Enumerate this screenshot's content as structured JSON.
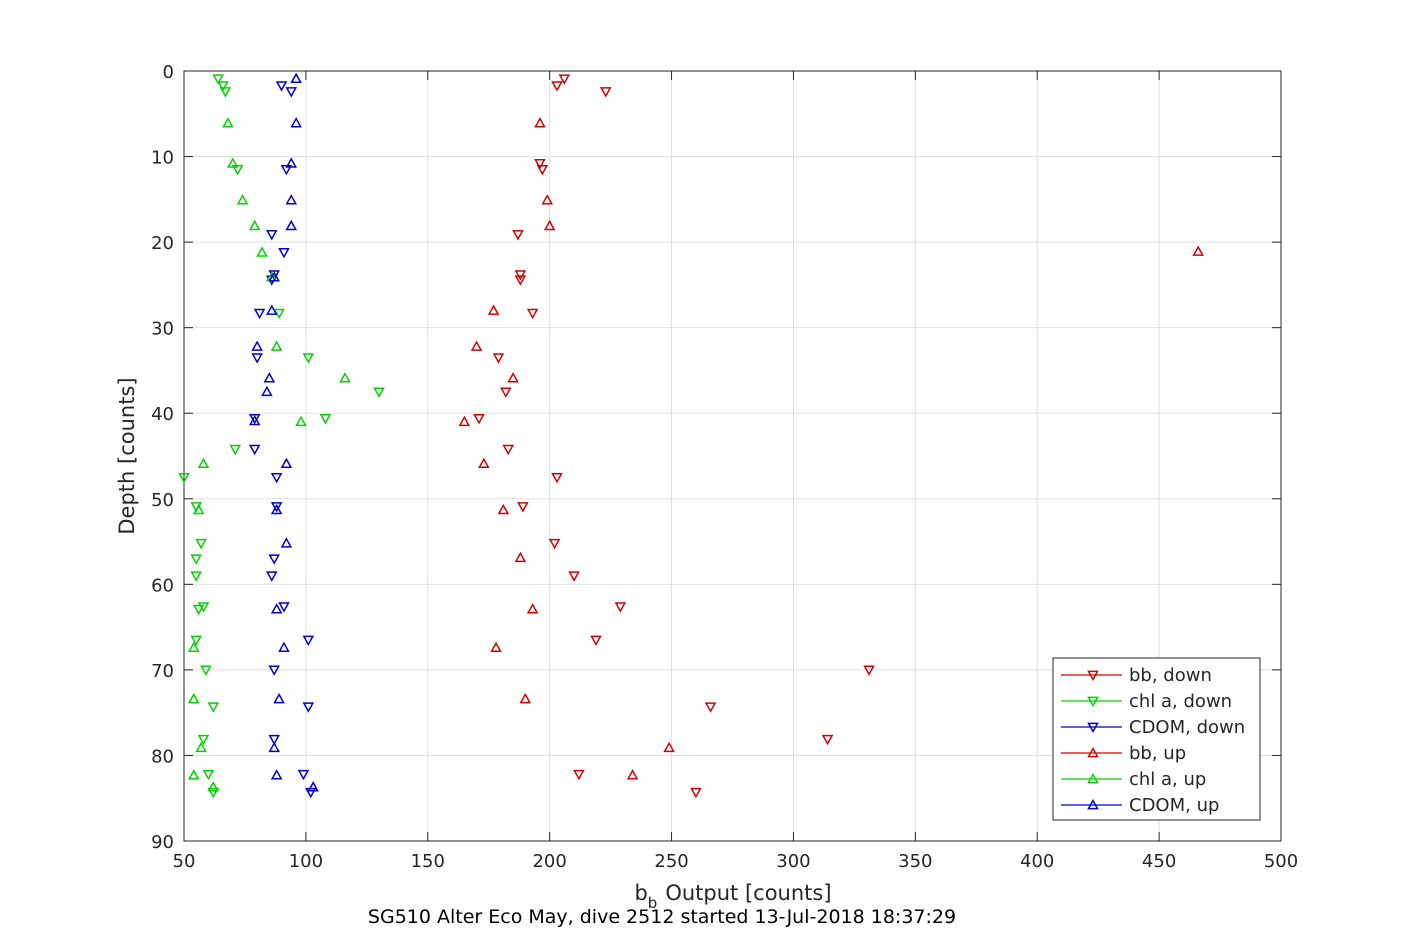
{
  "chart_data": {
    "type": "scatter",
    "title": "SG510 Alter Eco May, dive 2512 started 13-Jul-2018 18:37:29",
    "xlabel": "Output [counts]",
    "xlabel_symbol": "b",
    "xlabel_subscript": "b",
    "ylabel": "Depth [counts]",
    "xlim": [
      50,
      500
    ],
    "ylim": [
      0,
      90
    ],
    "y_reversed": true,
    "grid": true,
    "x_ticks": [
      50,
      100,
      150,
      200,
      250,
      300,
      350,
      400,
      450,
      500
    ],
    "y_ticks": [
      0,
      10,
      20,
      30,
      40,
      50,
      60,
      70,
      80,
      90
    ],
    "legend_position": "bottom-right",
    "series": [
      {
        "name": "bb, down",
        "color": "#d40000",
        "marker": "triangle-down",
        "points": [
          [
            206,
            0.9
          ],
          [
            203,
            1.7
          ],
          [
            223,
            2.4
          ],
          [
            196,
            10.8
          ],
          [
            197,
            11.5
          ],
          [
            187,
            19.1
          ],
          [
            188,
            23.8
          ],
          [
            188,
            24.4
          ],
          [
            193,
            28.3
          ],
          [
            179,
            33.5
          ],
          [
            182,
            37.5
          ],
          [
            171,
            40.6
          ],
          [
            183,
            44.2
          ],
          [
            203,
            47.5
          ],
          [
            189,
            50.9
          ],
          [
            202,
            55.2
          ],
          [
            210,
            59
          ],
          [
            229,
            62.6
          ],
          [
            219,
            66.5
          ],
          [
            331,
            70
          ],
          [
            266,
            74.3
          ],
          [
            314,
            78.1
          ],
          [
            212,
            82.2
          ],
          [
            260,
            84.3
          ]
        ]
      },
      {
        "name": "chl a, down",
        "color": "#00d400",
        "marker": "triangle-down",
        "points": [
          [
            64,
            0.9
          ],
          [
            66,
            1.7
          ],
          [
            67,
            2.4
          ],
          [
            72,
            11.5
          ],
          [
            89,
            28.3
          ],
          [
            101,
            33.5
          ],
          [
            130,
            37.5
          ],
          [
            108,
            40.6
          ],
          [
            71,
            44.2
          ],
          [
            50,
            47.5
          ],
          [
            55,
            50.9
          ],
          [
            57,
            55.2
          ],
          [
            55,
            57
          ],
          [
            55,
            59
          ],
          [
            58,
            62.6
          ],
          [
            56,
            62.9
          ],
          [
            55,
            66.5
          ],
          [
            59,
            70
          ],
          [
            62,
            74.3
          ],
          [
            58,
            78.1
          ],
          [
            60,
            82.2
          ],
          [
            62,
            84.3
          ]
        ]
      },
      {
        "name": "CDOM, down",
        "color": "#0000d4",
        "marker": "triangle-down",
        "points": [
          [
            90,
            1.7
          ],
          [
            94,
            2.4
          ],
          [
            92,
            11.5
          ],
          [
            86,
            19.1
          ],
          [
            91,
            21.2
          ],
          [
            87,
            23.8
          ],
          [
            86,
            24.4
          ],
          [
            81,
            28.3
          ],
          [
            80,
            33.5
          ],
          [
            79,
            40.6
          ],
          [
            79,
            44.2
          ],
          [
            88,
            47.5
          ],
          [
            88,
            50.9
          ],
          [
            87,
            57
          ],
          [
            86,
            59
          ],
          [
            91,
            62.6
          ],
          [
            101,
            66.5
          ],
          [
            87,
            70
          ],
          [
            101,
            74.3
          ],
          [
            87,
            78.1
          ],
          [
            99,
            82.2
          ],
          [
            102,
            84.3
          ]
        ]
      },
      {
        "name": "bb, up",
        "color": "#d40000",
        "marker": "triangle-up",
        "points": [
          [
            196,
            6.1
          ],
          [
            199,
            15.1
          ],
          [
            200,
            18.1
          ],
          [
            466,
            21.1
          ],
          [
            177,
            28
          ],
          [
            170,
            32.2
          ],
          [
            185,
            35.9
          ],
          [
            165,
            41
          ],
          [
            173,
            45.9
          ],
          [
            181,
            51.3
          ],
          [
            188,
            56.9
          ],
          [
            193,
            62.9
          ],
          [
            178,
            67.4
          ],
          [
            190,
            73.4
          ],
          [
            249,
            79.1
          ],
          [
            234,
            82.3
          ]
        ]
      },
      {
        "name": "chl a, up",
        "color": "#00d400",
        "marker": "triangle-up",
        "points": [
          [
            68,
            6.1
          ],
          [
            70,
            10.8
          ],
          [
            74,
            15.1
          ],
          [
            79,
            18.1
          ],
          [
            82,
            21.2
          ],
          [
            86,
            24.1
          ],
          [
            88,
            32.2
          ],
          [
            116,
            35.9
          ],
          [
            98,
            41
          ],
          [
            58,
            45.9
          ],
          [
            56,
            51.3
          ],
          [
            54,
            67.4
          ],
          [
            54,
            73.4
          ],
          [
            57,
            79.1
          ],
          [
            54,
            82.3
          ],
          [
            62,
            83.7
          ]
        ]
      },
      {
        "name": "CDOM, up",
        "color": "#0000d4",
        "marker": "triangle-up",
        "points": [
          [
            96,
            0.9
          ],
          [
            96,
            6.1
          ],
          [
            94,
            10.8
          ],
          [
            94,
            15.1
          ],
          [
            94,
            18.1
          ],
          [
            87,
            24.1
          ],
          [
            86,
            28
          ],
          [
            80,
            32.2
          ],
          [
            85,
            35.9
          ],
          [
            84,
            37.5
          ],
          [
            79,
            40.9
          ],
          [
            92,
            45.9
          ],
          [
            88,
            51.3
          ],
          [
            92,
            55.2
          ],
          [
            88,
            62.9
          ],
          [
            91,
            67.4
          ],
          [
            89,
            73.4
          ],
          [
            87,
            79.1
          ],
          [
            88,
            82.3
          ],
          [
            103,
            83.7
          ]
        ]
      }
    ]
  }
}
